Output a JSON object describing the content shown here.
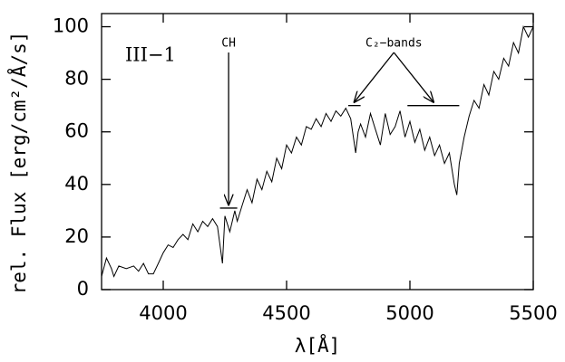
{
  "chart_data": {
    "type": "line",
    "xlabel": "λ[Å]",
    "ylabel": "rel. Flux [erg/cm²/Å/s]",
    "label": "III−1",
    "annotations": [
      {
        "text": "CH",
        "bars": [
          [
            4230,
            4300,
            31
          ]
        ]
      },
      {
        "text": "C₂−bands",
        "bars": [
          [
            4750,
            4800,
            70
          ],
          [
            4990,
            5200,
            70
          ]
        ]
      }
    ],
    "xlim": [
      3750,
      5500
    ],
    "ylim": [
      0,
      105
    ],
    "xticks": [
      4000,
      4500,
      5000,
      5500
    ],
    "yticks": [
      0,
      20,
      40,
      60,
      80,
      100
    ],
    "series": [
      {
        "color": "#000000",
        "x": [
          3750,
          3770,
          3790,
          3800,
          3820,
          3850,
          3880,
          3900,
          3920,
          3940,
          3960,
          3980,
          4000,
          4020,
          4040,
          4060,
          4080,
          4100,
          4120,
          4140,
          4160,
          4180,
          4200,
          4220,
          4240,
          4250,
          4270,
          4290,
          4300,
          4320,
          4340,
          4360,
          4380,
          4400,
          4420,
          4440,
          4460,
          4480,
          4500,
          4520,
          4540,
          4560,
          4580,
          4600,
          4620,
          4640,
          4660,
          4680,
          4700,
          4720,
          4740,
          4760,
          4780,
          4790,
          4800,
          4820,
          4840,
          4860,
          4880,
          4900,
          4920,
          4940,
          4960,
          4980,
          5000,
          5020,
          5040,
          5060,
          5080,
          5100,
          5120,
          5140,
          5160,
          5180,
          5190,
          5200,
          5220,
          5240,
          5260,
          5280,
          5300,
          5320,
          5340,
          5360,
          5380,
          5400,
          5420,
          5440,
          5460,
          5480,
          5500
        ],
        "values": [
          5,
          12,
          8,
          5,
          9,
          8,
          9,
          7,
          10,
          6,
          6,
          10,
          14,
          17,
          16,
          19,
          21,
          19,
          25,
          22,
          26,
          24,
          27,
          24,
          10,
          28,
          22,
          30,
          26,
          32,
          38,
          33,
          42,
          38,
          45,
          41,
          50,
          46,
          55,
          52,
          58,
          55,
          62,
          61,
          65,
          62,
          67,
          64,
          68,
          66,
          69,
          65,
          52,
          60,
          63,
          58,
          67,
          61,
          55,
          67,
          59,
          62,
          68,
          58,
          64,
          56,
          61,
          53,
          58,
          51,
          55,
          48,
          52,
          40,
          36,
          48,
          58,
          66,
          72,
          69,
          78,
          74,
          83,
          80,
          88,
          85,
          94,
          90,
          100,
          96,
          100
        ]
      }
    ]
  }
}
